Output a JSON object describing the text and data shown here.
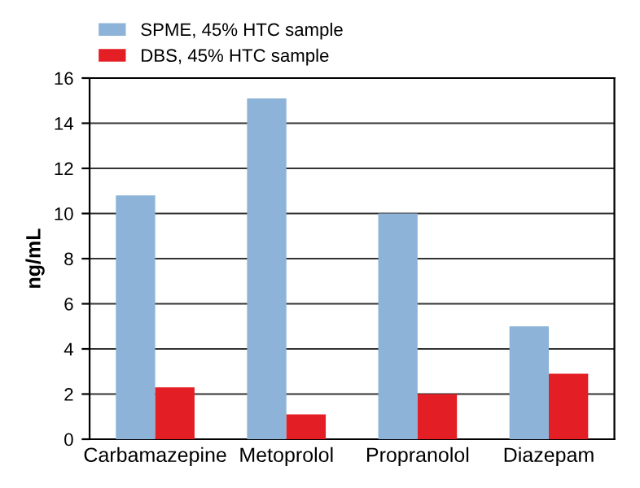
{
  "chart_data": {
    "type": "bar",
    "ylabel": "ng/mL",
    "categories": [
      "Carbamazepine",
      "Metoprolol",
      "Propranolol",
      "Diazepam"
    ],
    "series": [
      {
        "name": "SPME, 45% HTC sample",
        "color": "#8db4d8",
        "values": [
          10.8,
          15.1,
          10.0,
          5.0
        ]
      },
      {
        "name": "DBS, 45% HTC sample",
        "color": "#e31e24",
        "values": [
          2.3,
          1.1,
          2.0,
          2.9
        ]
      }
    ],
    "ylim": [
      0,
      16
    ],
    "yticks": [
      0,
      2,
      4,
      6,
      8,
      10,
      12,
      14,
      16
    ],
    "grid": "y",
    "legend": "top"
  }
}
